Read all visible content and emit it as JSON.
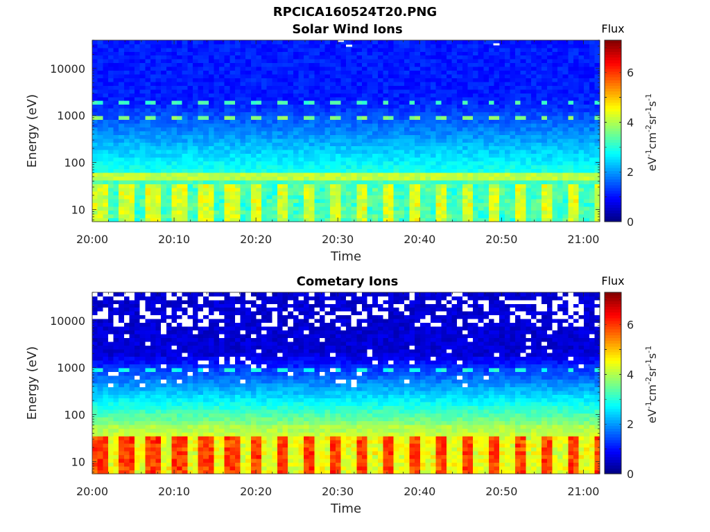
{
  "figure_title": "RPCICA160524T20.PNG",
  "colorbar": {
    "label": "Flux",
    "unit_parts": [
      "eV",
      "-1",
      "cm",
      "-2",
      "sr",
      "-1",
      "s",
      "-1"
    ],
    "ticks": [
      "0",
      "2",
      "4",
      "6"
    ],
    "range": [
      0,
      7.3
    ],
    "colormap": "jet"
  },
  "chart_data": [
    {
      "type": "heatmap",
      "title": "Solar Wind Ions",
      "xlabel": "Time",
      "ylabel": "Energy (eV)",
      "x_ticks": [
        "20:00",
        "20:10",
        "20:20",
        "20:30",
        "20:40",
        "20:50",
        "21:00"
      ],
      "xlim": [
        "20:00",
        "21:02"
      ],
      "y_ticks": [
        "10",
        "100",
        "1000",
        "10000"
      ],
      "yscale": "log",
      "ylim": [
        5.5,
        40000
      ],
      "zlim": [
        0,
        7.3
      ],
      "features": {
        "background_flux": 1.1,
        "flux_at_10eV": 3.9,
        "band_energy_eV": 50,
        "band_flux": 4.1,
        "peak_energy_eV": 900,
        "peak_flux": 3.7,
        "secondary_peak_eV": 1900,
        "sweep_period_min": 3.2
      },
      "missing_cells": [
        {
          "t": "20:31",
          "E": 30000
        },
        {
          "t": "20:30",
          "E": 38000
        },
        {
          "t": "20:49",
          "E": 32000
        }
      ]
    },
    {
      "type": "heatmap",
      "title": "Cometary Ions",
      "xlabel": "Time",
      "ylabel": "Energy (eV)",
      "x_ticks": [
        "20:00",
        "20:10",
        "20:20",
        "20:30",
        "20:40",
        "20:50",
        "21:00"
      ],
      "xlim": [
        "20:00",
        "21:02"
      ],
      "y_ticks": [
        "10",
        "100",
        "1000",
        "10000"
      ],
      "yscale": "log",
      "ylim": [
        5.5,
        40000
      ],
      "zlim": [
        0,
        7.3
      ],
      "features": {
        "background_flux": 0.6,
        "flux_at_10eV": 5.4,
        "band_energy_eV": 50,
        "band_flux": 4.0,
        "peak_energy_eV": 900,
        "peak_flux": 2.9,
        "sweep_period_min": 3.2,
        "missing_above_eV": 8000
      },
      "missing_cells": []
    }
  ]
}
